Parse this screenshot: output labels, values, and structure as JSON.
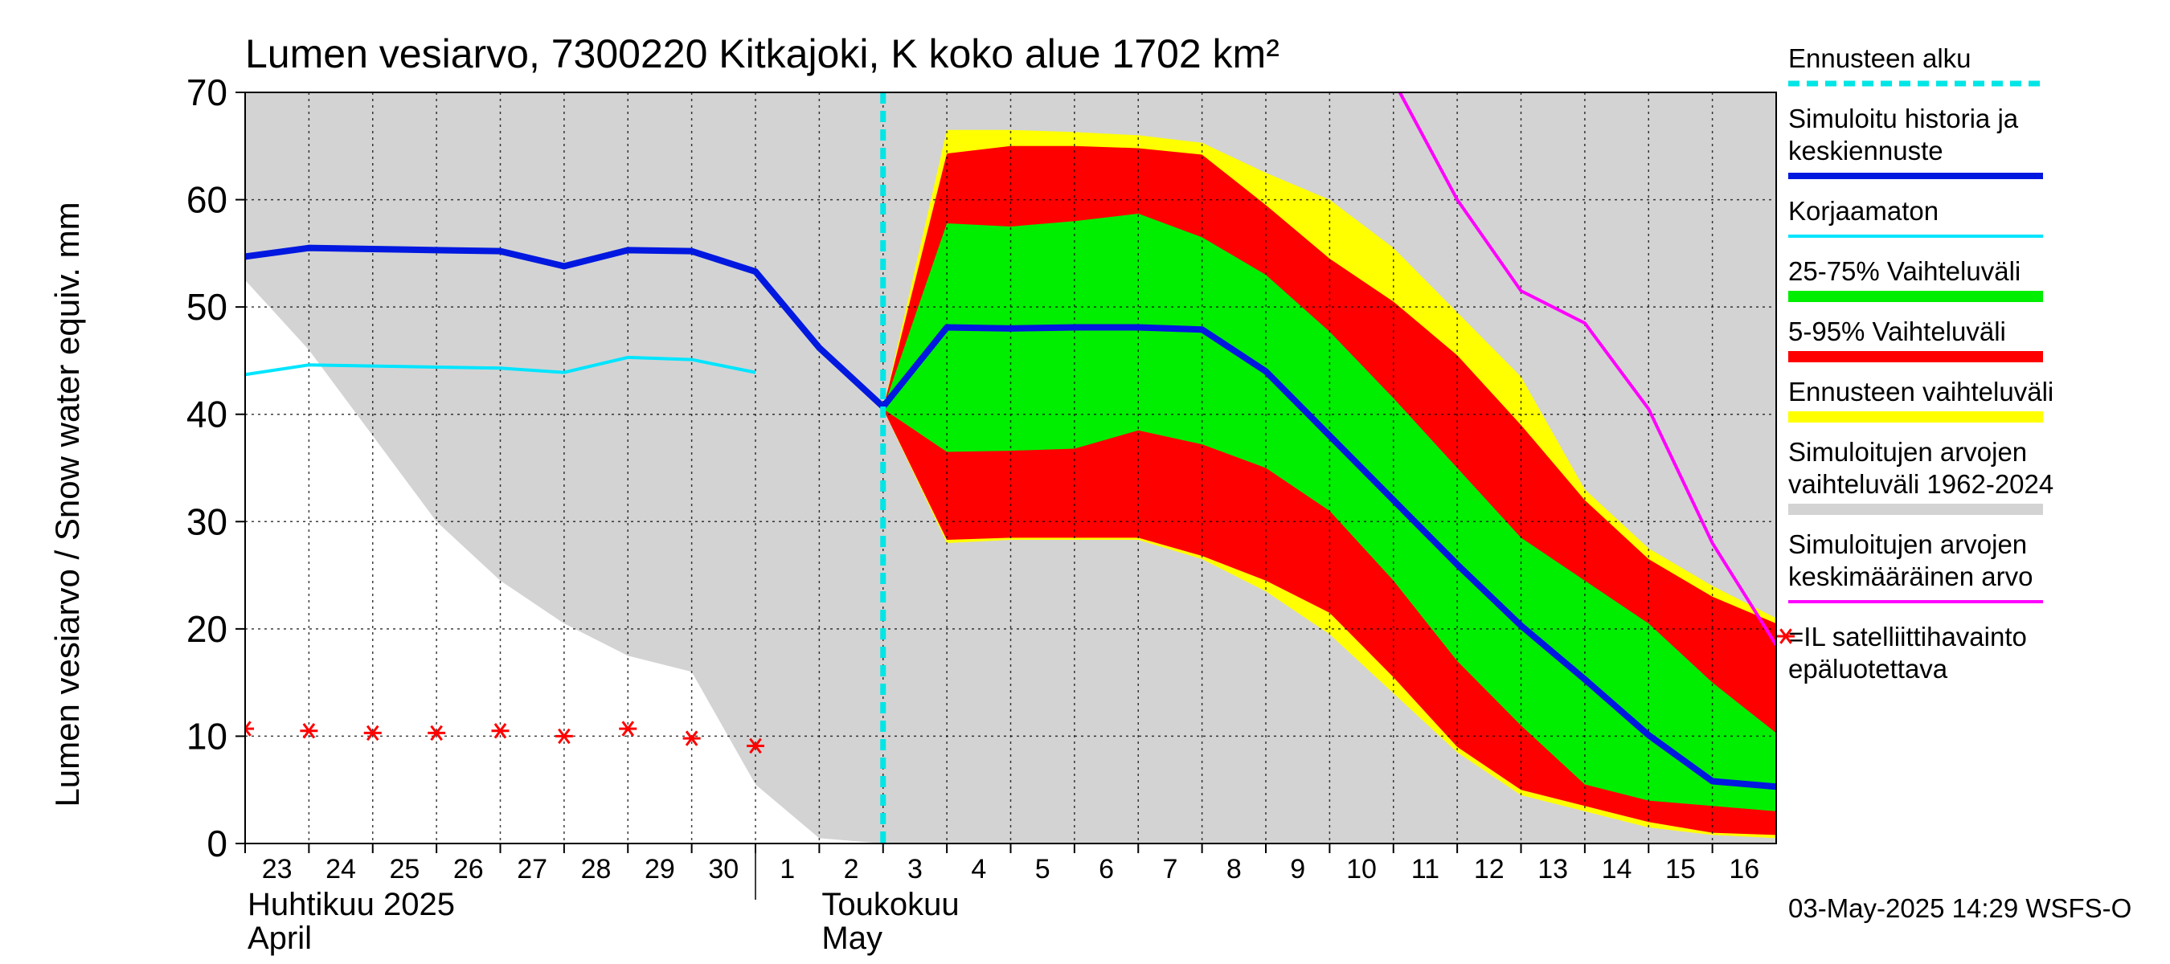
{
  "chart_data": {
    "type": "area",
    "title": "Lumen vesiarvo, 7300220 Kitkajoki, K koko alue 1702 km²",
    "ylabel": "Lumen vesiarvo / Snow water equiv.    mm",
    "ylim": [
      0,
      70
    ],
    "yticks": [
      0,
      10,
      20,
      30,
      40,
      50,
      60,
      70
    ],
    "grid": true,
    "legend_position": "right",
    "x_days": [
      {
        "day": 23,
        "label": "23"
      },
      {
        "day": 24,
        "label": "24"
      },
      {
        "day": 25,
        "label": "25"
      },
      {
        "day": 26,
        "label": "26"
      },
      {
        "day": 27,
        "label": "27"
      },
      {
        "day": 28,
        "label": "28"
      },
      {
        "day": 29,
        "label": "29"
      },
      {
        "day": 30,
        "label": "30"
      },
      {
        "day": 31,
        "label": "1"
      },
      {
        "day": 32,
        "label": "2"
      },
      {
        "day": 33,
        "label": "3"
      },
      {
        "day": 34,
        "label": "4"
      },
      {
        "day": 35,
        "label": "5"
      },
      {
        "day": 36,
        "label": "6"
      },
      {
        "day": 37,
        "label": "7"
      },
      {
        "day": 38,
        "label": "8"
      },
      {
        "day": 39,
        "label": "9"
      },
      {
        "day": 40,
        "label": "10"
      },
      {
        "day": 41,
        "label": "11"
      },
      {
        "day": 42,
        "label": "12"
      },
      {
        "day": 43,
        "label": "13"
      },
      {
        "day": 44,
        "label": "14"
      },
      {
        "day": 45,
        "label": "15"
      },
      {
        "day": 46,
        "label": "16"
      }
    ],
    "xlim": [
      23,
      47
    ],
    "month_labels": [
      {
        "day": 23,
        "fi": "Huhtikuu  2025",
        "en": "April"
      },
      {
        "day": 32,
        "fi": "Toukokuu",
        "en": "May"
      }
    ],
    "month_divider_day": 31,
    "forecast_start_day": 33,
    "timestamp": "03-May-2025 14:29 WSFS-O",
    "colors": {
      "historical_range": "#d3d3d3",
      "forecast_range": "#ffff00",
      "p5_95": "#ff0000",
      "p25_75": "#00ee00",
      "simulated": "#0018e0",
      "uncorrected": "#00e5ff",
      "mean": "#ff00ff",
      "satellite": "#ff0000",
      "forecast_line": "#00e5e5"
    },
    "historical_range": {
      "x": [
        23,
        24,
        25,
        26,
        27,
        28,
        29,
        30,
        31,
        32,
        33,
        34,
        35,
        36,
        37,
        38,
        39,
        40,
        41,
        42,
        43,
        44,
        45,
        46,
        47
      ],
      "upper": [
        70,
        70,
        70,
        70,
        70,
        70,
        70,
        70,
        70,
        70,
        70,
        70,
        70,
        70,
        70,
        70,
        70,
        70,
        70,
        70,
        70,
        70,
        70,
        70,
        70
      ],
      "lower": [
        52.5,
        46,
        38,
        30,
        24.5,
        20.5,
        17.5,
        16,
        5.5,
        0.5,
        0,
        0,
        0,
        0,
        0,
        0,
        0,
        0,
        0,
        0,
        0,
        0,
        0,
        0,
        0
      ]
    },
    "series": [
      {
        "name": "Ennusteen vaihteluväli",
        "key": "forecast_range",
        "x": [
          33,
          34,
          35,
          36,
          37,
          38,
          39,
          40,
          41,
          42,
          43,
          44,
          45,
          46,
          47
        ],
        "upper": [
          40.5,
          66.5,
          66.5,
          66.3,
          66,
          65.3,
          62.5,
          60,
          55.5,
          49.5,
          43.5,
          33,
          27.5,
          24,
          21
        ],
        "lower": [
          40.5,
          28,
          28.3,
          28.3,
          28.3,
          26.5,
          23.5,
          19.5,
          14,
          8.5,
          4.5,
          3,
          1.5,
          0.8,
          0.5
        ]
      },
      {
        "name": "5-95% Vaihteluväli",
        "key": "p5_95",
        "x": [
          33,
          34,
          35,
          36,
          37,
          38,
          39,
          40,
          41,
          42,
          43,
          44,
          45,
          46,
          47
        ],
        "upper": [
          40.5,
          64.3,
          65,
          65,
          64.8,
          64.2,
          59.5,
          54.5,
          50.5,
          45.5,
          39,
          32,
          26.5,
          23,
          20.5
        ],
        "lower": [
          40.5,
          28.3,
          28.5,
          28.5,
          28.5,
          26.8,
          24.5,
          21.5,
          15.5,
          9,
          5,
          3.5,
          2,
          1,
          0.8
        ]
      },
      {
        "name": "25-75% Vaihteluväli",
        "key": "p25_75",
        "x": [
          33,
          34,
          35,
          36,
          37,
          38,
          39,
          40,
          41,
          42,
          43,
          44,
          45,
          46,
          47
        ],
        "upper": [
          40.5,
          57.8,
          57.5,
          58,
          58.7,
          56.5,
          53,
          47.7,
          41.5,
          35,
          28.5,
          24.5,
          20.5,
          15,
          10.3
        ],
        "lower": [
          40.5,
          36.5,
          36.6,
          36.8,
          38.5,
          37.2,
          35,
          31,
          24.5,
          17,
          11,
          5.5,
          4,
          3.5,
          3
        ]
      },
      {
        "name": "Simuloitujen arvojen keskimääräinen arvo",
        "key": "mean",
        "x": [
          41.1,
          42,
          43,
          44,
          45,
          46,
          47
        ],
        "values": [
          70,
          60,
          51.5,
          48.5,
          40.5,
          28,
          18.5
        ]
      },
      {
        "name": "Korjaamaton",
        "key": "uncorrected",
        "x": [
          23,
          24,
          25,
          26,
          27,
          28,
          29,
          30,
          31
        ],
        "values": [
          43.7,
          44.6,
          44.5,
          44.4,
          44.3,
          43.9,
          45.3,
          45.1,
          43.9
        ]
      },
      {
        "name": "Simuloitu historia ja keskiennuste",
        "key": "simulated",
        "x": [
          23,
          24,
          25,
          26,
          27,
          28,
          29,
          30,
          31,
          32,
          33,
          34,
          35,
          36,
          37,
          38,
          39,
          40,
          41,
          42,
          43,
          44,
          45,
          46,
          47
        ],
        "values": [
          54.7,
          55.5,
          55.4,
          55.3,
          55.2,
          53.8,
          55.3,
          55.2,
          53.3,
          46.2,
          40.7,
          48.1,
          48,
          48.1,
          48.1,
          47.9,
          44,
          38,
          32,
          26,
          20.3,
          15.3,
          10.1,
          5.8,
          5.3
        ]
      },
      {
        "name": "=IL satelliittihavainto epäluotettava",
        "key": "satellite",
        "x": [
          23,
          24,
          25,
          26,
          27,
          28,
          29,
          30,
          31
        ],
        "values": [
          10.7,
          10.5,
          10.3,
          10.3,
          10.5,
          10,
          10.7,
          9.8,
          9.1
        ]
      }
    ],
    "legend": [
      {
        "lines": [
          "Ennusteen alku"
        ],
        "key": "forecast_line",
        "style": "dash"
      },
      {
        "lines": [
          "Simuloitu historia ja",
          "keskiennuste"
        ],
        "key": "simulated",
        "style": "thick"
      },
      {
        "lines": [
          "Korjaamaton"
        ],
        "key": "uncorrected",
        "style": "line"
      },
      {
        "lines": [
          "25-75% Vaihteluväli"
        ],
        "key": "p25_75",
        "style": "band"
      },
      {
        "lines": [
          "5-95% Vaihteluväli"
        ],
        "key": "p5_95",
        "style": "band"
      },
      {
        "lines": [
          "Ennusteen vaihteluväli"
        ],
        "key": "forecast_range",
        "style": "band"
      },
      {
        "lines": [
          "Simuloitujen arvojen",
          "vaihteluväli 1962-2024"
        ],
        "key": "historical_range",
        "style": "band"
      },
      {
        "lines": [
          "Simuloitujen arvojen",
          "keskimääräinen arvo"
        ],
        "key": "mean",
        "style": "line"
      },
      {
        "lines": [
          "=IL satelliittihavainto",
          "epäluotettava"
        ],
        "key": "satellite",
        "style": "marker"
      }
    ]
  }
}
